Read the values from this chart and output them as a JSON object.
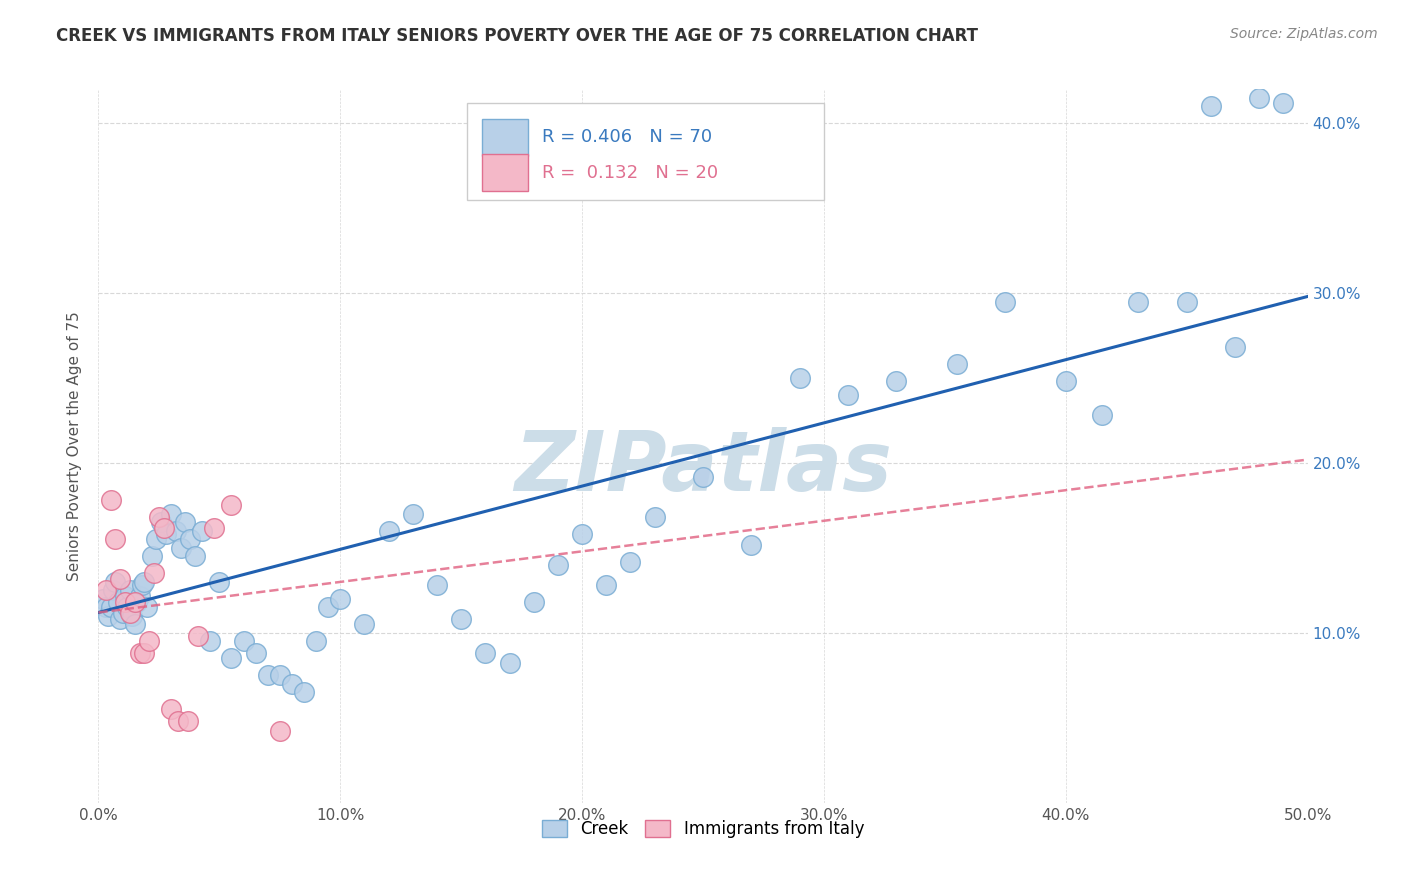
{
  "title": "CREEK VS IMMIGRANTS FROM ITALY SENIORS POVERTY OVER THE AGE OF 75 CORRELATION CHART",
  "source": "Source: ZipAtlas.com",
  "ylabel": "Seniors Poverty Over the Age of 75",
  "xlim": [
    0.0,
    0.5
  ],
  "ylim": [
    0.0,
    0.42
  ],
  "xticks": [
    0.0,
    0.1,
    0.2,
    0.3,
    0.4,
    0.5
  ],
  "yticks": [
    0.1,
    0.2,
    0.3,
    0.4
  ],
  "creek_R": 0.406,
  "creek_N": 70,
  "italy_R": 0.132,
  "italy_N": 20,
  "creek_color": "#b8d0e8",
  "creek_edge": "#7aadd4",
  "italy_color": "#f4b8c8",
  "italy_edge": "#e07090",
  "creek_line_color": "#2060b0",
  "italy_line_color": "#e06080",
  "background_color": "#ffffff",
  "grid_color": "#d8d8d8",
  "watermark": "ZIPatlas",
  "watermark_color": "#ccdde8",
  "title_color": "#333333",
  "axis_label_color": "#555555",
  "tick_color_blue": "#3a7abf",
  "tick_color_x": "#555555",
  "creek_x": [
    0.002,
    0.003,
    0.004,
    0.005,
    0.006,
    0.007,
    0.008,
    0.009,
    0.01,
    0.011,
    0.012,
    0.013,
    0.014,
    0.015,
    0.016,
    0.017,
    0.018,
    0.019,
    0.02,
    0.022,
    0.024,
    0.026,
    0.028,
    0.03,
    0.032,
    0.034,
    0.036,
    0.038,
    0.04,
    0.043,
    0.046,
    0.05,
    0.055,
    0.06,
    0.065,
    0.07,
    0.075,
    0.08,
    0.085,
    0.09,
    0.095,
    0.1,
    0.11,
    0.12,
    0.13,
    0.14,
    0.15,
    0.16,
    0.17,
    0.18,
    0.19,
    0.2,
    0.21,
    0.22,
    0.23,
    0.25,
    0.27,
    0.29,
    0.31,
    0.33,
    0.355,
    0.375,
    0.4,
    0.415,
    0.43,
    0.45,
    0.46,
    0.47,
    0.48,
    0.49
  ],
  "creek_y": [
    0.12,
    0.115,
    0.11,
    0.115,
    0.125,
    0.13,
    0.118,
    0.108,
    0.112,
    0.122,
    0.115,
    0.125,
    0.11,
    0.105,
    0.118,
    0.122,
    0.128,
    0.13,
    0.115,
    0.145,
    0.155,
    0.165,
    0.158,
    0.17,
    0.16,
    0.15,
    0.165,
    0.155,
    0.145,
    0.16,
    0.095,
    0.13,
    0.085,
    0.095,
    0.088,
    0.075,
    0.075,
    0.07,
    0.065,
    0.095,
    0.115,
    0.12,
    0.105,
    0.16,
    0.17,
    0.128,
    0.108,
    0.088,
    0.082,
    0.118,
    0.14,
    0.158,
    0.128,
    0.142,
    0.168,
    0.192,
    0.152,
    0.25,
    0.24,
    0.248,
    0.258,
    0.295,
    0.248,
    0.228,
    0.295,
    0.295,
    0.41,
    0.268,
    0.415,
    0.412
  ],
  "italy_x": [
    0.003,
    0.005,
    0.007,
    0.009,
    0.011,
    0.013,
    0.015,
    0.017,
    0.019,
    0.021,
    0.023,
    0.025,
    0.027,
    0.03,
    0.033,
    0.037,
    0.041,
    0.048,
    0.055,
    0.075
  ],
  "italy_y": [
    0.125,
    0.178,
    0.155,
    0.132,
    0.118,
    0.112,
    0.118,
    0.088,
    0.088,
    0.095,
    0.135,
    0.168,
    0.162,
    0.055,
    0.048,
    0.048,
    0.098,
    0.162,
    0.175,
    0.042
  ],
  "creek_line_x0": 0.0,
  "creek_line_y0": 0.112,
  "creek_line_x1": 0.5,
  "creek_line_y1": 0.298,
  "italy_line_x0": 0.0,
  "italy_line_y0": 0.112,
  "italy_line_x1": 0.5,
  "italy_line_y1": 0.202
}
